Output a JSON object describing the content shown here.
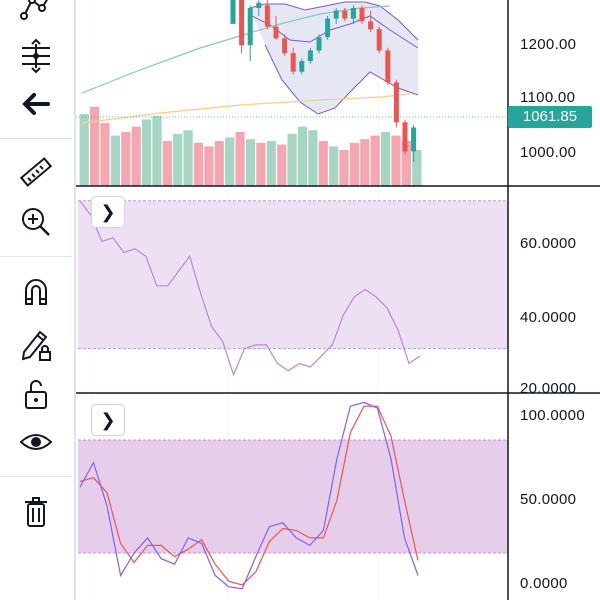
{
  "toolbar": {
    "tools": [
      {
        "name": "pattern-tool-icon"
      },
      {
        "name": "adjust-tool-icon"
      },
      {
        "name": "back-arrow-icon"
      },
      {
        "name": "ruler-icon"
      },
      {
        "name": "zoom-in-icon"
      },
      {
        "name": "magnet-icon"
      },
      {
        "name": "pencil-lock-icon"
      },
      {
        "name": "unlock-icon"
      },
      {
        "name": "eye-icon"
      },
      {
        "name": "trash-icon"
      }
    ]
  },
  "colors": {
    "bullish": "#26a69a",
    "bearish": "#ef5350",
    "volume_up": "#a5d6c2",
    "volume_down": "#f4a7b0",
    "band_fill": "#c5cae9",
    "band_line": "#7e57c2",
    "ma_teal": "#80cbc4",
    "ma_orange": "#ffcc80",
    "osc_band": "#ede0f3",
    "stoch_band": "#e6cde9",
    "k_line": "#7b61ff",
    "d_line": "#ef5350",
    "rsi_line": "#b58ad2",
    "price_badge": "#26a69a"
  },
  "price_pane": {
    "axis": {
      "min": 950,
      "max": 1300,
      "ticks": [
        "1200.00",
        "1100.00",
        "1000.00"
      ]
    },
    "current_price": "1061.85",
    "candles": [
      {
        "o": 1255,
        "h": 1300,
        "l": 1255,
        "c": 1300
      },
      {
        "o": 1300,
        "h": 1300,
        "l": 1200,
        "c": 1215
      },
      {
        "o": 1215,
        "h": 1290,
        "l": 1185,
        "c": 1285
      },
      {
        "o": 1285,
        "h": 1300,
        "l": 1270,
        "c": 1295
      },
      {
        "o": 1290,
        "h": 1300,
        "l": 1245,
        "c": 1250
      },
      {
        "o": 1250,
        "h": 1270,
        "l": 1225,
        "c": 1228
      },
      {
        "o": 1228,
        "h": 1235,
        "l": 1195,
        "c": 1200
      },
      {
        "o": 1200,
        "h": 1210,
        "l": 1160,
        "c": 1165
      },
      {
        "o": 1165,
        "h": 1190,
        "l": 1160,
        "c": 1185
      },
      {
        "o": 1185,
        "h": 1210,
        "l": 1180,
        "c": 1205
      },
      {
        "o": 1205,
        "h": 1235,
        "l": 1200,
        "c": 1230
      },
      {
        "o": 1230,
        "h": 1270,
        "l": 1225,
        "c": 1265
      },
      {
        "o": 1265,
        "h": 1285,
        "l": 1255,
        "c": 1280
      },
      {
        "o": 1280,
        "h": 1285,
        "l": 1260,
        "c": 1265
      },
      {
        "o": 1265,
        "h": 1290,
        "l": 1255,
        "c": 1285
      },
      {
        "o": 1285,
        "h": 1290,
        "l": 1255,
        "c": 1260
      },
      {
        "o": 1260,
        "h": 1280,
        "l": 1240,
        "c": 1245
      },
      {
        "o": 1245,
        "h": 1250,
        "l": 1200,
        "c": 1205
      },
      {
        "o": 1205,
        "h": 1210,
        "l": 1140,
        "c": 1145
      },
      {
        "o": 1145,
        "h": 1150,
        "l": 1060,
        "c": 1070
      },
      {
        "o": 1070,
        "h": 1075,
        "l": 1010,
        "c": 1015
      },
      {
        "o": 1015,
        "h": 1065,
        "l": 995,
        "c": 1060
      }
    ],
    "volume": [
      {
        "v": 80,
        "up": true
      },
      {
        "v": 88,
        "up": false
      },
      {
        "v": 70,
        "up": false
      },
      {
        "v": 56,
        "up": true
      },
      {
        "v": 60,
        "up": false
      },
      {
        "v": 66,
        "up": false
      },
      {
        "v": 74,
        "up": true
      },
      {
        "v": 78,
        "up": true
      },
      {
        "v": 50,
        "up": false
      },
      {
        "v": 58,
        "up": true
      },
      {
        "v": 62,
        "up": true
      },
      {
        "v": 48,
        "up": false
      },
      {
        "v": 44,
        "up": false
      },
      {
        "v": 50,
        "up": false
      },
      {
        "v": 54,
        "up": true
      },
      {
        "v": 60,
        "up": false
      },
      {
        "v": 52,
        "up": true
      },
      {
        "v": 48,
        "up": false
      },
      {
        "v": 50,
        "up": true
      },
      {
        "v": 46,
        "up": false
      },
      {
        "v": 58,
        "up": true
      },
      {
        "v": 66,
        "up": true
      },
      {
        "v": 62,
        "up": true
      },
      {
        "v": 50,
        "up": false
      },
      {
        "v": 44,
        "up": true
      },
      {
        "v": 40,
        "up": false
      },
      {
        "v": 48,
        "up": false
      },
      {
        "v": 52,
        "up": false
      },
      {
        "v": 56,
        "up": false
      },
      {
        "v": 60,
        "up": true
      },
      {
        "v": 56,
        "up": false
      },
      {
        "v": 50,
        "up": false
      },
      {
        "v": 40,
        "up": true
      }
    ],
    "volume_scale_max": 100
  },
  "rsi_pane": {
    "axis": {
      "min": 18,
      "max": 74,
      "ticks": [
        "60.0000",
        "40.0000",
        "20.0000"
      ]
    },
    "band": [
      30,
      70
    ],
    "series": [
      70,
      66,
      59,
      60,
      56,
      57,
      55,
      47,
      47,
      51,
      55,
      45,
      36,
      32,
      23,
      30,
      31,
      31,
      26,
      24,
      26,
      25,
      28,
      31,
      39,
      44,
      46,
      44,
      41,
      35,
      26,
      28
    ]
  },
  "stoch_pane": {
    "axis": {
      "min": -5,
      "max": 105,
      "ticks": [
        "100.0000",
        "50.0000",
        "0.0000"
      ]
    },
    "band": [
      20,
      80
    ],
    "k_series": [
      55,
      68,
      45,
      8,
      20,
      28,
      17,
      14,
      28,
      25,
      8,
      2,
      1,
      18,
      34,
      36,
      28,
      24,
      32,
      70,
      98,
      100,
      97,
      70,
      28,
      8
    ],
    "d_series": [
      58,
      60,
      52,
      25,
      15,
      24,
      24,
      18,
      22,
      27,
      14,
      5,
      3,
      10,
      26,
      33,
      32,
      28,
      28,
      48,
      84,
      98,
      98,
      82,
      48,
      16
    ]
  }
}
